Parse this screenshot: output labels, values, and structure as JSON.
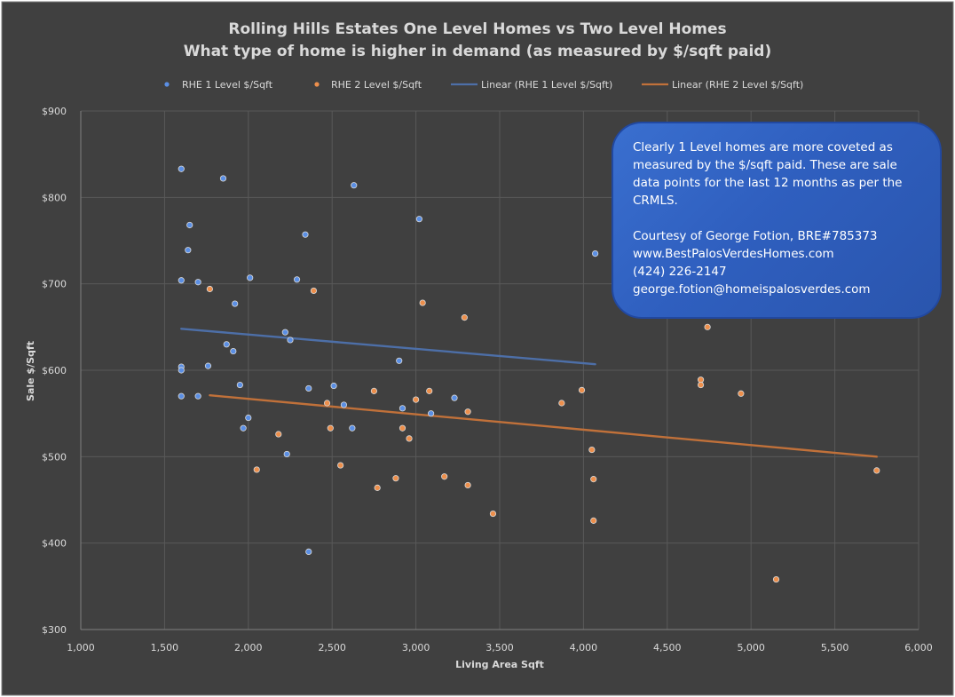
{
  "chart_data": {
    "type": "scatter",
    "title": "Rolling Hills Estates One Level Homes vs Two Level Homes",
    "subtitle": "What type of home is higher in demand (as measured by $/sqft paid)",
    "xlabel": "Living Area Sqft",
    "ylabel": "Sale $/Sqft",
    "xlim": [
      1000,
      6000
    ],
    "ylim": [
      300,
      900
    ],
    "x_ticks": [
      "1,000",
      "1,500",
      "2,000",
      "2,500",
      "3,000",
      "3,500",
      "4,000",
      "4,500",
      "5,000",
      "5,500",
      "6,000"
    ],
    "y_ticks": [
      "$300",
      "$400",
      "$500",
      "$600",
      "$700",
      "$800",
      "$900"
    ],
    "grid": true,
    "legend_position": "top",
    "legend": [
      "RHE 1 Level $/Sqft",
      "RHE 2 Level $/Sqft",
      "Linear (RHE 1 Level $/Sqft)",
      "Linear (RHE 2 Level $/Sqft)"
    ],
    "colors": {
      "background": "#404040",
      "frame": "#ffffff",
      "grid": "#595959",
      "series1": "#5b8fe4",
      "series2": "#ed8f4c",
      "trend1": "#4d6fa8",
      "trend2": "#c1713a"
    },
    "series": [
      {
        "name": "RHE 1 Level $/Sqft",
        "points": [
          [
            1600,
            833
          ],
          [
            1600,
            704
          ],
          [
            1600,
            604
          ],
          [
            1600,
            600
          ],
          [
            1600,
            570
          ],
          [
            1640,
            739
          ],
          [
            1650,
            768
          ],
          [
            1700,
            702
          ],
          [
            1700,
            570
          ],
          [
            1760,
            605
          ],
          [
            1850,
            822
          ],
          [
            1870,
            630
          ],
          [
            1910,
            622
          ],
          [
            1920,
            677
          ],
          [
            1950,
            583
          ],
          [
            1970,
            533
          ],
          [
            2000,
            545
          ],
          [
            2010,
            707
          ],
          [
            2220,
            644
          ],
          [
            2230,
            503
          ],
          [
            2250,
            635
          ],
          [
            2290,
            705
          ],
          [
            2340,
            757
          ],
          [
            2360,
            579
          ],
          [
            2360,
            390
          ],
          [
            2510,
            582
          ],
          [
            2570,
            560
          ],
          [
            2620,
            533
          ],
          [
            2630,
            814
          ],
          [
            2900,
            611
          ],
          [
            2920,
            556
          ],
          [
            3020,
            775
          ],
          [
            3090,
            550
          ],
          [
            3230,
            568
          ],
          [
            4070,
            735
          ]
        ]
      },
      {
        "name": "RHE 2 Level $/Sqft",
        "points": [
          [
            1770,
            694
          ],
          [
            2050,
            485
          ],
          [
            2180,
            526
          ],
          [
            2390,
            692
          ],
          [
            2470,
            562
          ],
          [
            2490,
            533
          ],
          [
            2550,
            490
          ],
          [
            2750,
            576
          ],
          [
            2770,
            464
          ],
          [
            2880,
            475
          ],
          [
            2920,
            533
          ],
          [
            2960,
            521
          ],
          [
            3000,
            566
          ],
          [
            3040,
            678
          ],
          [
            3080,
            576
          ],
          [
            3170,
            477
          ],
          [
            3290,
            661
          ],
          [
            3310,
            552
          ],
          [
            3310,
            467
          ],
          [
            3460,
            434
          ],
          [
            3870,
            562
          ],
          [
            3990,
            577
          ],
          [
            4050,
            508
          ],
          [
            4060,
            474
          ],
          [
            4060,
            426
          ],
          [
            4700,
            589
          ],
          [
            4700,
            583
          ],
          [
            4740,
            650
          ],
          [
            4940,
            573
          ],
          [
            5150,
            358
          ],
          [
            5750,
            484
          ]
        ]
      }
    ],
    "trendlines": [
      {
        "name": "Linear (RHE 1 Level $/Sqft)",
        "from": [
          1600,
          648
        ],
        "to": [
          4070,
          607
        ]
      },
      {
        "name": "Linear (RHE 2 Level $/Sqft)",
        "from": [
          1770,
          571
        ],
        "to": [
          5750,
          500
        ]
      }
    ]
  },
  "note": {
    "lines": [
      "Clearly 1 Level homes are more coveted as",
      "measured by the $/sqft paid.  These are sale",
      "data points for the last 12 months as per the",
      "CRMLS.",
      "Courtesy of George Fotion, BRE#785373",
      "www.BestPalosVerdesHomes.com",
      "(424) 226-2147",
      "george.fotion@homeispalosverdes.com"
    ]
  }
}
